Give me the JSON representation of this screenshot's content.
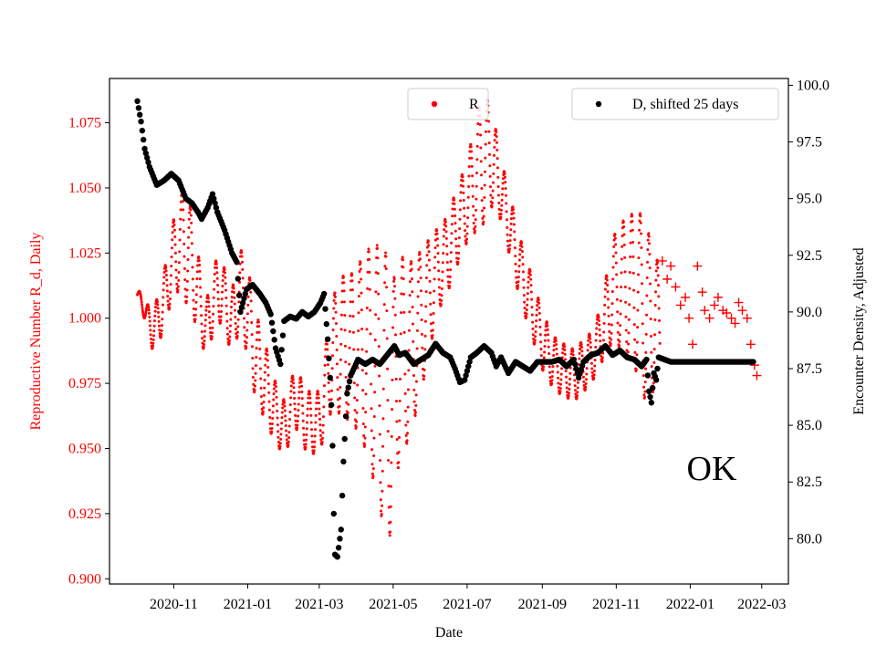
{
  "chart_data": {
    "type": "scatter",
    "title": "",
    "xlabel": "Date",
    "ylabel_left": "Reproductive Number R_d, Daily",
    "ylabel_right": "Encounter Density, Adjusted",
    "annotation": "OK",
    "colors": {
      "R": "#ff0000",
      "D": "#000000",
      "axis_left": "#ff0000",
      "axis_right": "#000000"
    },
    "x_ticks": [
      "2020-11",
      "2021-01",
      "2021-03",
      "2021-05",
      "2021-07",
      "2021-09",
      "2021-11",
      "2022-01",
      "2022-03"
    ],
    "x_tick_days": [
      30,
      91,
      150,
      211,
      272,
      334,
      395,
      456,
      515
    ],
    "x_range_days": [
      -23,
      537
    ],
    "y_left_range": [
      0.898,
      1.092
    ],
    "y_left_ticks": [
      "0.900",
      "0.925",
      "0.950",
      "0.975",
      "1.000",
      "1.025",
      "1.050",
      "1.075"
    ],
    "y_right_range": [
      78.0,
      100.3
    ],
    "y_right_ticks": [
      "80.0",
      "82.5",
      "85.0",
      "87.5",
      "90.0",
      "92.5",
      "95.0",
      "97.5",
      "100.0"
    ],
    "legend": {
      "r_label": "R",
      "d_label": "D, shifted 25 days"
    },
    "series": [
      {
        "name": "R",
        "axis": "left",
        "marker": "point",
        "center_anchors": [
          [
            0,
            1.009
          ],
          [
            5,
            1.005
          ],
          [
            12,
            0.995
          ],
          [
            20,
            1.003
          ],
          [
            28,
            1.02
          ],
          [
            35,
            1.03
          ],
          [
            42,
            1.027
          ],
          [
            50,
            1.01
          ],
          [
            57,
            0.995
          ],
          [
            64,
            1.01
          ],
          [
            70,
            1.01
          ],
          [
            78,
            0.998
          ],
          [
            85,
            1.012
          ],
          [
            92,
            1.0
          ],
          [
            98,
            0.985
          ],
          [
            106,
            0.975
          ],
          [
            115,
            0.962
          ],
          [
            122,
            0.958
          ],
          [
            130,
            0.97
          ],
          [
            140,
            0.96
          ],
          [
            150,
            0.96
          ],
          [
            160,
            0.985
          ],
          [
            168,
            0.99
          ],
          [
            178,
            0.988
          ],
          [
            188,
            0.988
          ],
          [
            198,
            0.98
          ],
          [
            205,
            0.97
          ],
          [
            210,
            0.965
          ],
          [
            216,
            0.985
          ],
          [
            225,
            0.988
          ],
          [
            235,
            1.0
          ],
          [
            245,
            1.015
          ],
          [
            256,
            1.025
          ],
          [
            266,
            1.038
          ],
          [
            276,
            1.05
          ],
          [
            283,
            1.06
          ],
          [
            291,
            1.063
          ],
          [
            297,
            1.055
          ],
          [
            305,
            1.04
          ],
          [
            315,
            1.02
          ],
          [
            325,
            1.005
          ],
          [
            335,
            0.99
          ],
          [
            345,
            0.982
          ],
          [
            360,
            0.978
          ],
          [
            375,
            0.985
          ],
          [
            385,
            0.998
          ],
          [
            393,
            1.012
          ],
          [
            403,
            1.012
          ],
          [
            413,
            1.01
          ],
          [
            421,
            1.0
          ],
          [
            431,
            0.999
          ]
        ],
        "amplitude_anchors": [
          [
            0,
            0.002
          ],
          [
            25,
            0.012
          ],
          [
            40,
            0.022
          ],
          [
            55,
            0.012
          ],
          [
            75,
            0.012
          ],
          [
            95,
            0.018
          ],
          [
            120,
            0.01
          ],
          [
            135,
            0.012
          ],
          [
            150,
            0.012
          ],
          [
            165,
            0.025
          ],
          [
            180,
            0.03
          ],
          [
            195,
            0.045
          ],
          [
            205,
            0.055
          ],
          [
            215,
            0.04
          ],
          [
            230,
            0.03
          ],
          [
            250,
            0.015
          ],
          [
            270,
            0.015
          ],
          [
            285,
            0.025
          ],
          [
            300,
            0.012
          ],
          [
            320,
            0.012
          ],
          [
            350,
            0.01
          ],
          [
            380,
            0.01
          ],
          [
            400,
            0.025
          ],
          [
            420,
            0.035
          ],
          [
            431,
            0.02
          ]
        ],
        "tail_cross_points": [
          [
            433,
            1.022
          ],
          [
            437,
            1.015
          ],
          [
            440,
            1.02
          ],
          [
            444,
            1.012
          ],
          [
            448,
            1.005
          ],
          [
            452,
            1.008
          ],
          [
            455,
            1.0
          ],
          [
            458,
            0.99
          ],
          [
            462,
            1.02
          ],
          [
            466,
            1.01
          ],
          [
            468,
            1.003
          ],
          [
            472,
            1.0
          ],
          [
            476,
            1.005
          ],
          [
            479,
            1.008
          ],
          [
            483,
            1.003
          ],
          [
            486,
            1.002
          ],
          [
            490,
            1.0
          ],
          [
            493,
            0.998
          ],
          [
            496,
            1.006
          ],
          [
            499,
            1.003
          ],
          [
            503,
            1.0
          ],
          [
            506,
            0.99
          ],
          [
            509,
            0.982
          ],
          [
            511,
            0.978
          ]
        ]
      },
      {
        "name": "D, shifted 25 days",
        "axis": "right",
        "marker": "point",
        "value_anchors": [
          [
            0,
            99.3
          ],
          [
            3,
            98.4
          ],
          [
            6,
            97.2
          ],
          [
            10,
            96.4
          ],
          [
            16,
            95.6
          ],
          [
            22,
            95.8
          ],
          [
            28,
            96.1
          ],
          [
            34,
            95.8
          ],
          [
            40,
            95.0
          ],
          [
            45,
            94.8
          ],
          [
            50,
            94.4
          ],
          [
            53,
            94.1
          ],
          [
            58,
            94.6
          ],
          [
            62,
            95.2
          ],
          [
            66,
            94.4
          ],
          [
            72,
            93.6
          ],
          [
            78,
            92.6
          ],
          [
            82,
            92.2
          ],
          [
            85,
            90.0
          ],
          [
            90,
            91.0
          ],
          [
            95,
            91.2
          ],
          [
            101,
            90.8
          ],
          [
            106,
            90.4
          ],
          [
            110,
            89.9
          ],
          [
            114,
            88.4
          ],
          [
            118,
            87.7
          ],
          [
            121,
            89.6
          ],
          [
            126,
            89.8
          ],
          [
            131,
            89.7
          ],
          [
            136,
            90.0
          ],
          [
            141,
            89.8
          ],
          [
            146,
            90.0
          ],
          [
            151,
            90.4
          ],
          [
            154,
            90.8
          ],
          [
            157,
            88.8
          ],
          [
            159,
            87.1
          ],
          [
            160,
            85.9
          ],
          [
            161,
            84.1
          ],
          [
            162,
            81.1
          ],
          [
            163,
            79.3
          ],
          [
            165,
            79.2
          ],
          [
            168,
            80.4
          ],
          [
            170,
            83.4
          ],
          [
            173,
            86.4
          ],
          [
            176,
            87.2
          ],
          [
            182,
            87.9
          ],
          [
            188,
            87.7
          ],
          [
            194,
            87.9
          ],
          [
            200,
            87.7
          ],
          [
            206,
            88.1
          ],
          [
            212,
            88.5
          ],
          [
            216,
            88.1
          ],
          [
            221,
            88.2
          ],
          [
            228,
            87.7
          ],
          [
            234,
            87.9
          ],
          [
            240,
            88.1
          ],
          [
            246,
            88.6
          ],
          [
            252,
            88.2
          ],
          [
            258,
            88.0
          ],
          [
            262,
            87.5
          ],
          [
            266,
            86.9
          ],
          [
            270,
            87.0
          ],
          [
            275,
            88.0
          ],
          [
            280,
            88.2
          ],
          [
            286,
            88.5
          ],
          [
            292,
            88.2
          ],
          [
            296,
            87.6
          ],
          [
            300,
            88.0
          ],
          [
            306,
            87.3
          ],
          [
            312,
            87.8
          ],
          [
            318,
            87.6
          ],
          [
            324,
            87.4
          ],
          [
            330,
            87.8
          ],
          [
            336,
            87.8
          ],
          [
            342,
            87.8
          ],
          [
            348,
            87.9
          ],
          [
            354,
            87.6
          ],
          [
            360,
            87.9
          ],
          [
            364,
            87.1
          ],
          [
            368,
            87.8
          ],
          [
            374,
            88.1
          ],
          [
            380,
            88.2
          ],
          [
            386,
            88.5
          ],
          [
            392,
            88.1
          ],
          [
            398,
            88.3
          ],
          [
            404,
            88.0
          ],
          [
            410,
            87.9
          ],
          [
            416,
            87.6
          ],
          [
            420,
            87.9
          ],
          [
            422,
            86.5
          ],
          [
            424,
            86.0
          ],
          [
            426,
            87.3
          ],
          [
            428,
            87.0
          ],
          [
            430,
            88.0
          ],
          [
            435,
            87.9
          ],
          [
            440,
            87.8
          ],
          [
            500,
            87.8
          ],
          [
            508,
            87.8
          ]
        ]
      }
    ]
  }
}
